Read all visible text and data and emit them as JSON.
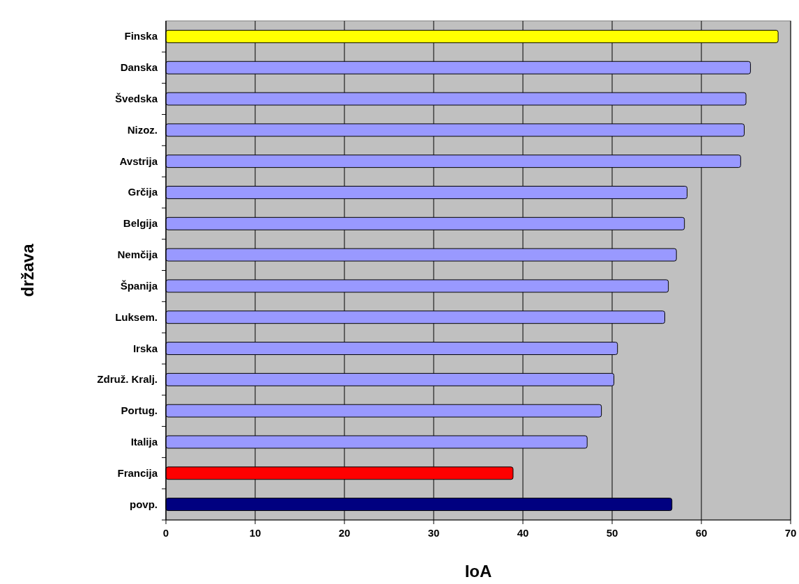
{
  "chart_data": {
    "type": "bar",
    "orientation": "horizontal",
    "xlabel": "IoA",
    "ylabel": "država",
    "categories": [
      "Finska",
      "Danska",
      "Švedska",
      "Nizoz.",
      "Avstrija",
      "Grčija",
      "Belgija",
      "Nemčija",
      "Španija",
      "Luksem.",
      "Irska",
      "Združ. Kralj.",
      "Portug.",
      "Italija",
      "Francija",
      "povp."
    ],
    "values": [
      68.6,
      65.5,
      65,
      64.8,
      64.4,
      58.4,
      58.1,
      57.2,
      56.3,
      55.9,
      50.6,
      50.2,
      48.8,
      47.2,
      38.9,
      56.7
    ],
    "colors": [
      "#ffff00",
      "#9999ff",
      "#9999ff",
      "#9999ff",
      "#9999ff",
      "#9999ff",
      "#9999ff",
      "#9999ff",
      "#9999ff",
      "#9999ff",
      "#9999ff",
      "#9999ff",
      "#9999ff",
      "#9999ff",
      "#ff0000",
      "#000080"
    ],
    "xlim": [
      0,
      70
    ],
    "xticks": [
      0,
      10,
      20,
      30,
      40,
      50,
      60,
      70
    ],
    "grid": "x"
  }
}
